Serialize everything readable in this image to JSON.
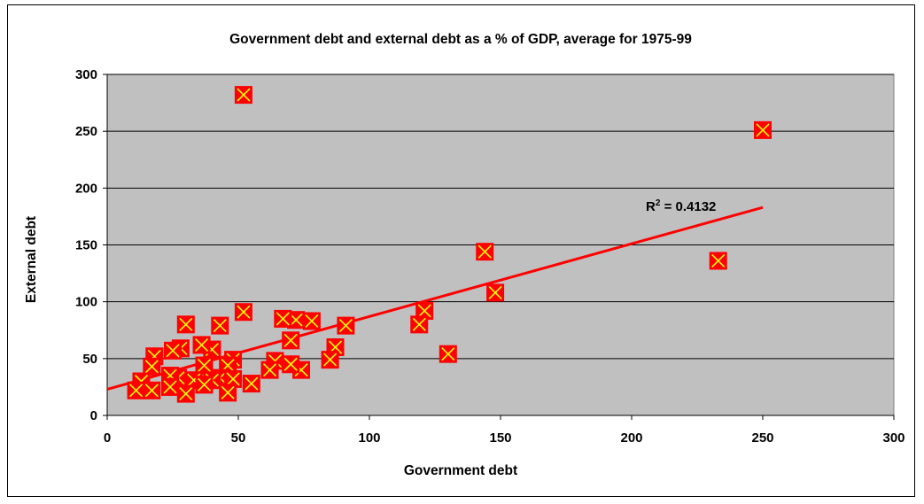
{
  "chart_data": {
    "type": "scatter",
    "title": "Government debt and external debt as a % of GDP, average for 1975-99",
    "xlabel": "Government debt",
    "ylabel": "External debt",
    "xlim": [
      0,
      300
    ],
    "ylim": [
      0,
      300
    ],
    "xticks": [
      0,
      50,
      100,
      150,
      200,
      250,
      300
    ],
    "yticks": [
      0,
      50,
      100,
      150,
      200,
      250,
      300
    ],
    "grid": "horizontal",
    "plot_background": "#c0c0c0",
    "marker_color": "#ff0000",
    "marker_cross_color": "#ffff00",
    "trendline_color": "#ff0000",
    "trendline": {
      "type": "linear",
      "x_start": 0,
      "y_start": 23,
      "x_end": 250,
      "y_end": 183
    },
    "r_squared_label": {
      "base": "R",
      "sup": "2",
      "rest": " = 0.4132"
    },
    "points": [
      {
        "x": 52,
        "y": 282
      },
      {
        "x": 250,
        "y": 251
      },
      {
        "x": 144,
        "y": 144
      },
      {
        "x": 233,
        "y": 136
      },
      {
        "x": 148,
        "y": 108
      },
      {
        "x": 121,
        "y": 92
      },
      {
        "x": 119,
        "y": 80
      },
      {
        "x": 130,
        "y": 54
      },
      {
        "x": 91,
        "y": 79
      },
      {
        "x": 87,
        "y": 60
      },
      {
        "x": 85,
        "y": 49
      },
      {
        "x": 78,
        "y": 83
      },
      {
        "x": 72,
        "y": 84
      },
      {
        "x": 67,
        "y": 85
      },
      {
        "x": 70,
        "y": 66
      },
      {
        "x": 74,
        "y": 40
      },
      {
        "x": 70,
        "y": 45
      },
      {
        "x": 64,
        "y": 48
      },
      {
        "x": 62,
        "y": 40
      },
      {
        "x": 52,
        "y": 91
      },
      {
        "x": 43,
        "y": 79
      },
      {
        "x": 30,
        "y": 80
      },
      {
        "x": 40,
        "y": 58
      },
      {
        "x": 36,
        "y": 62
      },
      {
        "x": 28,
        "y": 59
      },
      {
        "x": 25,
        "y": 57
      },
      {
        "x": 18,
        "y": 52
      },
      {
        "x": 48,
        "y": 49
      },
      {
        "x": 46,
        "y": 44
      },
      {
        "x": 37,
        "y": 44
      },
      {
        "x": 17,
        "y": 43
      },
      {
        "x": 43,
        "y": 33
      },
      {
        "x": 48,
        "y": 32
      },
      {
        "x": 40,
        "y": 31
      },
      {
        "x": 33,
        "y": 31
      },
      {
        "x": 27,
        "y": 33
      },
      {
        "x": 24,
        "y": 35
      },
      {
        "x": 13,
        "y": 30
      },
      {
        "x": 55,
        "y": 28
      },
      {
        "x": 37,
        "y": 27
      },
      {
        "x": 24,
        "y": 25
      },
      {
        "x": 17,
        "y": 22
      },
      {
        "x": 11,
        "y": 22
      },
      {
        "x": 30,
        "y": 19
      },
      {
        "x": 46,
        "y": 20
      }
    ]
  }
}
